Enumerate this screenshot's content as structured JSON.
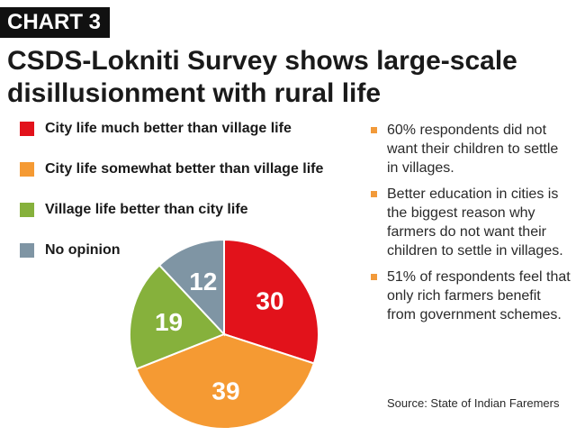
{
  "header": {
    "tag": "CHART 3",
    "title": "CSDS-Lokniti Survey shows large-scale disillusionment with rural life"
  },
  "chart_data": {
    "type": "pie",
    "categories": [
      "City life much better than village life",
      "City life somewhat better than village life",
      "Village life better than city life",
      "No opinion"
    ],
    "values": [
      30,
      39,
      19,
      12
    ],
    "colors": [
      "#e2121b",
      "#f59a33",
      "#86b13c",
      "#7f95a4"
    ],
    "title": "CSDS-Lokniti Survey shows large-scale disillusionment with rural life",
    "legend_position": "top-left"
  },
  "notes": [
    "60% respondents did not want their children to settle in villages.",
    "Better education in cities is the biggest reason why farmers do not want their children to settle in villages.",
    "51% of respondents feel that only rich farmers benefit from government schemes."
  ],
  "bullet_color": "#f29a3a",
  "source": "Source: State of Indian Faremers"
}
